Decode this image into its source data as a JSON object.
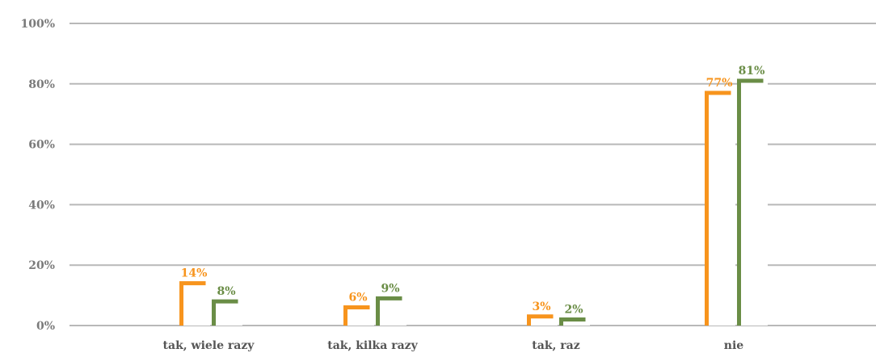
{
  "chart_data": {
    "type": "bar",
    "categories": [
      "tak, wiele razy",
      "tak, kilka razy",
      "tak, raz",
      "nie"
    ],
    "series": [
      {
        "values": [
          14,
          6,
          3,
          77
        ],
        "labels": [
          "14%",
          "6%",
          "3%",
          "77%"
        ],
        "color": "#f7941d"
      },
      {
        "values": [
          8,
          9,
          2,
          81
        ],
        "labels": [
          "8%",
          "9%",
          "2%",
          "81%"
        ],
        "color": "#6a8d46"
      }
    ],
    "ylim": [
      0,
      100
    ],
    "yticks": [
      0,
      20,
      40,
      60,
      80,
      100
    ],
    "ytick_labels": [
      "0%",
      "20%",
      "40%",
      "60%",
      "80%",
      "100%"
    ],
    "grid": true,
    "legend": "none",
    "title": "",
    "xlabel": "",
    "ylabel": ""
  }
}
